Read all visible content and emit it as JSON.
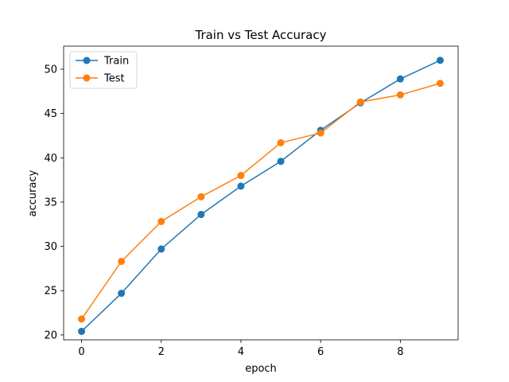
{
  "chart_data": {
    "type": "line",
    "title": "Train vs Test Accuracy",
    "xlabel": "epoch",
    "ylabel": "accuracy",
    "x": [
      0,
      1,
      2,
      3,
      4,
      5,
      6,
      7,
      8,
      9
    ],
    "xlim": [
      -0.45,
      9.45
    ],
    "ylim": [
      19.45,
      52.6
    ],
    "xticks": [
      0,
      2,
      4,
      6,
      8
    ],
    "yticks": [
      20,
      25,
      30,
      35,
      40,
      45,
      50
    ],
    "grid": false,
    "legend_position": "top-left",
    "series": [
      {
        "name": "Train",
        "color": "#1f77b4",
        "marker": "circle",
        "values": [
          20.4,
          24.7,
          29.7,
          33.6,
          36.8,
          39.6,
          43.1,
          46.2,
          48.9,
          51.0
        ]
      },
      {
        "name": "Test",
        "color": "#ff7f0e",
        "marker": "circle",
        "values": [
          21.8,
          28.3,
          32.8,
          35.6,
          38.0,
          41.7,
          42.8,
          46.3,
          47.1,
          48.4
        ]
      }
    ]
  }
}
